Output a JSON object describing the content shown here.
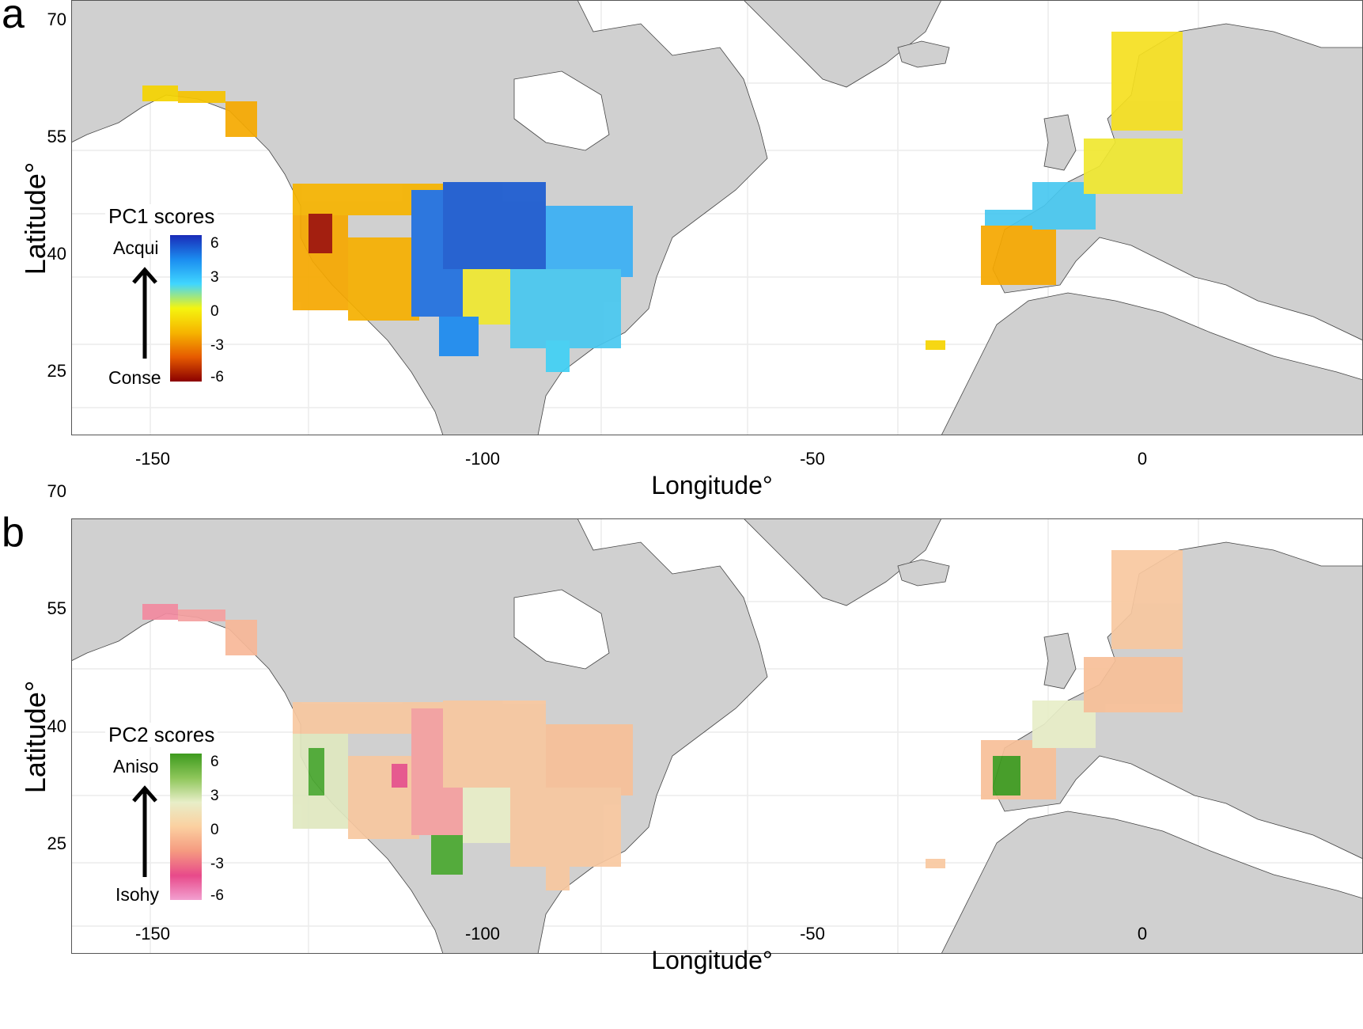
{
  "panels": [
    {
      "letter": "a",
      "legend": {
        "title": "PC1 scores",
        "top_label": "Acqui",
        "bottom_label": "Conse",
        "ticks": [
          "6",
          "3",
          "0",
          "-3",
          "-6"
        ],
        "colors": [
          "#1a2bb8",
          "#1b8df0",
          "#40d6ff",
          "#f5f50f",
          "#f6b400",
          "#e65a00",
          "#8b0000"
        ]
      }
    },
    {
      "letter": "b",
      "legend": {
        "title": "PC2 scores",
        "top_label": "Aniso",
        "bottom_label": "Isohy",
        "ticks": [
          "6",
          "3",
          "0",
          "-3",
          "-6"
        ],
        "colors": [
          "#3d9a1e",
          "#8ec65a",
          "#e8eec8",
          "#fbd0a0",
          "#f59a80",
          "#e84a8a",
          "#f2a0d0"
        ]
      }
    }
  ],
  "axes": {
    "x_label": "Longitude°",
    "y_label": "Latitude°",
    "x_ticks": [
      "-150",
      "-100",
      "-50",
      "0"
    ],
    "y_ticks": [
      "70",
      "55",
      "40",
      "25"
    ]
  }
}
